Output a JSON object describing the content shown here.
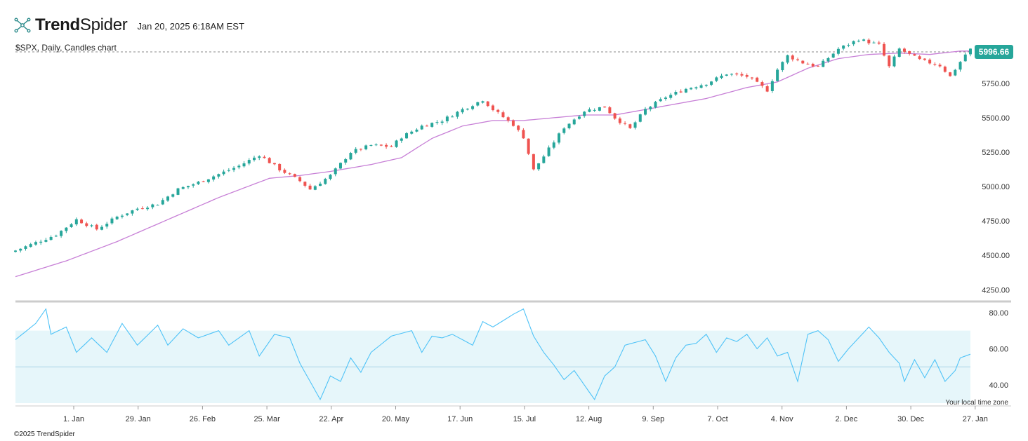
{
  "header": {
    "brand_bold": "Trend",
    "brand_light": "Spider",
    "timestamp": "Jan 20, 2025 6:18AM EST"
  },
  "symbol_line": "$SPX, Daily, Candles chart",
  "footer": "©2025 TrendSpider",
  "timezone_note": "Your local time zone",
  "colors": {
    "up": "#26a69a",
    "down": "#ef5350",
    "ma": "#c77fd6",
    "rsi": "#4fc3f7",
    "rsi_band": "#e6f6fa",
    "price_tag": "#26a69a"
  },
  "chart_data": [
    {
      "type": "candlestick",
      "last_price": "5996.66",
      "y_ticks": [
        "4250.00",
        "4500.00",
        "4750.00",
        "5000.00",
        "5250.00",
        "5500.00",
        "5750.00"
      ],
      "ylim": [
        4175,
        6050
      ],
      "x_ticks": [
        "1. Jan",
        "29. Jan",
        "26. Feb",
        "25. Mar",
        "22. Apr",
        "20. May",
        "17. Jun",
        "15. Jul",
        "12. Aug",
        "9. Sep",
        "7. Oct",
        "4. Nov",
        "2. Dec",
        "30. Dec",
        "27. Jan"
      ],
      "close_path": [
        [
          0,
          4535
        ],
        [
          8,
          4650
        ],
        [
          12,
          4760
        ],
        [
          16,
          4690
        ],
        [
          20,
          4780
        ],
        [
          24,
          4840
        ],
        [
          28,
          4875
        ],
        [
          32,
          4980
        ],
        [
          36,
          5030
        ],
        [
          40,
          5090
        ],
        [
          44,
          5150
        ],
        [
          48,
          5230
        ],
        [
          52,
          5125
        ],
        [
          56,
          5040
        ],
        [
          58,
          4980
        ],
        [
          62,
          5080
        ],
        [
          66,
          5250
        ],
        [
          70,
          5300
        ],
        [
          74,
          5290
        ],
        [
          76,
          5360
        ],
        [
          80,
          5440
        ],
        [
          84,
          5480
        ],
        [
          88,
          5560
        ],
        [
          92,
          5630
        ],
        [
          94,
          5560
        ],
        [
          98,
          5450
        ],
        [
          100,
          5360
        ],
        [
          102,
          5120
        ],
        [
          104,
          5220
        ],
        [
          108,
          5430
        ],
        [
          112,
          5550
        ],
        [
          116,
          5580
        ],
        [
          118,
          5500
        ],
        [
          121,
          5420
        ],
        [
          124,
          5560
        ],
        [
          128,
          5650
        ],
        [
          132,
          5710
        ],
        [
          136,
          5750
        ],
        [
          140,
          5820
        ],
        [
          144,
          5800
        ],
        [
          148,
          5700
        ],
        [
          150,
          5850
        ],
        [
          152,
          5950
        ],
        [
          155,
          5900
        ],
        [
          158,
          5870
        ],
        [
          162,
          6000
        ],
        [
          166,
          6070
        ],
        [
          170,
          6030
        ],
        [
          172,
          5870
        ],
        [
          174,
          6000
        ],
        [
          178,
          5920
        ],
        [
          182,
          5880
        ],
        [
          184,
          5800
        ],
        [
          187,
          5960
        ],
        [
          188,
          5997
        ]
      ],
      "ma_path": [
        [
          0,
          4345
        ],
        [
          10,
          4460
        ],
        [
          20,
          4600
        ],
        [
          30,
          4760
        ],
        [
          40,
          4920
        ],
        [
          50,
          5060
        ],
        [
          56,
          5080
        ],
        [
          62,
          5110
        ],
        [
          70,
          5160
        ],
        [
          76,
          5210
        ],
        [
          82,
          5350
        ],
        [
          88,
          5440
        ],
        [
          94,
          5480
        ],
        [
          100,
          5480
        ],
        [
          106,
          5500
        ],
        [
          112,
          5520
        ],
        [
          118,
          5520
        ],
        [
          124,
          5560
        ],
        [
          130,
          5600
        ],
        [
          136,
          5640
        ],
        [
          144,
          5720
        ],
        [
          150,
          5760
        ],
        [
          156,
          5860
        ],
        [
          162,
          5930
        ],
        [
          168,
          5960
        ],
        [
          174,
          5970
        ],
        [
          180,
          5960
        ],
        [
          186,
          5985
        ],
        [
          188,
          5985
        ]
      ]
    },
    {
      "type": "line",
      "name": "",
      "y_ticks": [
        "40.00",
        "60.00",
        "80.00"
      ],
      "ylim": [
        30,
        83
      ],
      "band": [
        30,
        70
      ],
      "midline": 50,
      "rsi_path": [
        [
          0,
          65
        ],
        [
          4,
          74
        ],
        [
          6,
          82
        ],
        [
          7,
          68
        ],
        [
          10,
          72
        ],
        [
          12,
          58
        ],
        [
          15,
          66
        ],
        [
          18,
          58
        ],
        [
          21,
          74
        ],
        [
          24,
          62
        ],
        [
          28,
          73
        ],
        [
          30,
          62
        ],
        [
          33,
          71
        ],
        [
          36,
          66
        ],
        [
          40,
          70
        ],
        [
          42,
          62
        ],
        [
          46,
          70
        ],
        [
          48,
          56
        ],
        [
          51,
          68
        ],
        [
          54,
          66
        ],
        [
          56,
          52
        ],
        [
          58,
          42
        ],
        [
          60,
          32
        ],
        [
          62,
          45
        ],
        [
          64,
          42
        ],
        [
          66,
          55
        ],
        [
          68,
          47
        ],
        [
          70,
          58
        ],
        [
          74,
          67
        ],
        [
          78,
          70
        ],
        [
          80,
          58
        ],
        [
          82,
          67
        ],
        [
          84,
          66
        ],
        [
          86,
          68
        ],
        [
          90,
          62
        ],
        [
          92,
          75
        ],
        [
          94,
          72
        ],
        [
          98,
          79
        ],
        [
          100,
          82
        ],
        [
          102,
          67
        ],
        [
          104,
          58
        ],
        [
          106,
          51
        ],
        [
          108,
          43
        ],
        [
          110,
          48
        ],
        [
          112,
          40
        ],
        [
          114,
          32
        ],
        [
          116,
          45
        ],
        [
          118,
          50
        ],
        [
          120,
          62
        ],
        [
          124,
          65
        ],
        [
          126,
          56
        ],
        [
          128,
          42
        ],
        [
          130,
          55
        ],
        [
          132,
          62
        ],
        [
          134,
          63
        ],
        [
          136,
          68
        ],
        [
          138,
          58
        ],
        [
          140,
          66
        ],
        [
          142,
          64
        ],
        [
          144,
          68
        ],
        [
          146,
          60
        ],
        [
          148,
          66
        ],
        [
          150,
          56
        ],
        [
          152,
          58
        ],
        [
          154,
          42
        ],
        [
          156,
          68
        ],
        [
          158,
          70
        ],
        [
          160,
          65
        ],
        [
          162,
          53
        ],
        [
          164,
          60
        ],
        [
          166,
          66
        ],
        [
          168,
          72
        ],
        [
          170,
          66
        ],
        [
          172,
          58
        ],
        [
          174,
          52
        ],
        [
          175,
          42
        ],
        [
          177,
          54
        ],
        [
          179,
          44
        ],
        [
          181,
          54
        ],
        [
          183,
          42
        ],
        [
          185,
          48
        ],
        [
          186,
          55
        ],
        [
          188,
          57
        ]
      ]
    }
  ]
}
